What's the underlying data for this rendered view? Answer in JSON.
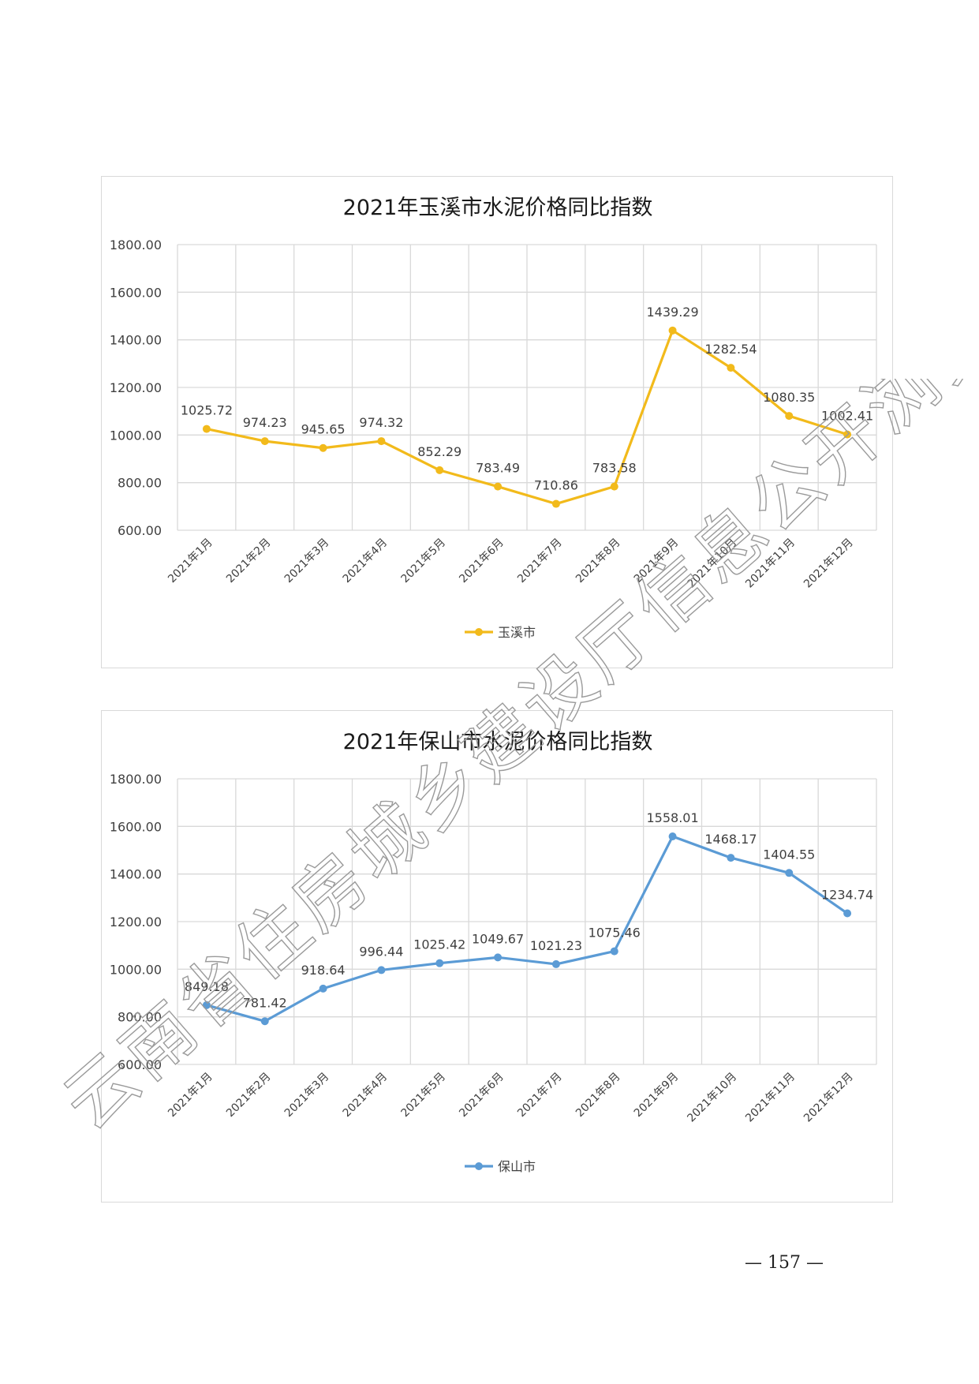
{
  "chart_data": [
    {
      "type": "line",
      "title": "2021年玉溪市水泥价格同比指数",
      "categories": [
        "2021年1月",
        "2021年2月",
        "2021年3月",
        "2021年4月",
        "2021年5月",
        "2021年6月",
        "2021年7月",
        "2021年8月",
        "2021年9月",
        "2021年10月",
        "2021年11月",
        "2021年12月"
      ],
      "series": [
        {
          "name": "玉溪市",
          "values": [
            1025.72,
            974.23,
            945.65,
            974.32,
            852.29,
            783.49,
            710.86,
            783.58,
            1439.29,
            1282.54,
            1080.35,
            1002.41
          ],
          "color": "#F2BA1B"
        }
      ],
      "ylim": [
        600,
        1800
      ],
      "yticks": [
        "600.00",
        "800.00",
        "1000.00",
        "1200.00",
        "1400.00",
        "1600.00",
        "1800.00"
      ],
      "grid": true,
      "legend": "bottom"
    },
    {
      "type": "line",
      "title": "2021年保山市水泥价格同比指数",
      "categories": [
        "2021年1月",
        "2021年2月",
        "2021年3月",
        "2021年4月",
        "2021年5月",
        "2021年6月",
        "2021年7月",
        "2021年8月",
        "2021年9月",
        "2021年10月",
        "2021年11月",
        "2021年12月"
      ],
      "series": [
        {
          "name": "保山市",
          "values": [
            849.18,
            781.42,
            918.64,
            996.44,
            1025.42,
            1049.67,
            1021.23,
            1075.46,
            1558.01,
            1468.17,
            1404.55,
            1234.74
          ],
          "color": "#5B9BD5"
        }
      ],
      "ylim": [
        600,
        1800
      ],
      "yticks": [
        "600.00",
        "800.00",
        "1000.00",
        "1200.00",
        "1400.00",
        "1600.00",
        "1800.00"
      ],
      "grid": true,
      "legend": "bottom"
    }
  ],
  "page_number": "— 157 —",
  "watermark": "云南省住房城乡建设厅信息公开浏览专用"
}
